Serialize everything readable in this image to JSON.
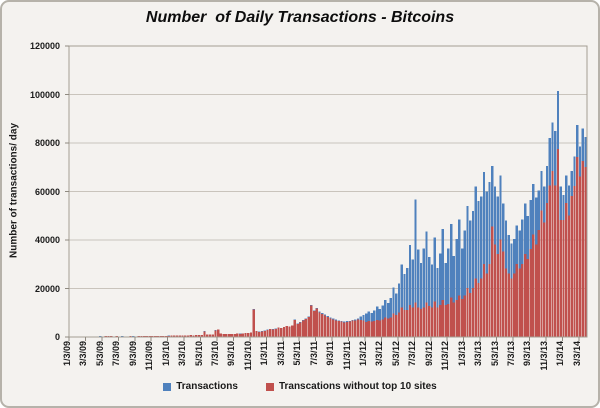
{
  "chart_data": {
    "type": "bar",
    "title": "Number  of Daily Transactions - Bitcoins",
    "ylabel": "Number of transactions/ day",
    "xlabel": "",
    "ylim": [
      0,
      120000
    ],
    "grid": true,
    "legend_position": "bottom",
    "y_tick_values": [
      0,
      20000,
      40000,
      60000,
      80000,
      100000,
      120000
    ],
    "y_tick_labels": [
      "0",
      "20000",
      "40000",
      "60000",
      "80000",
      "100000",
      "120000"
    ],
    "x_tick_labels": [
      "1/3/09",
      "3/3/09",
      "5/3/09",
      "7/3/09",
      "9/3/09",
      "11/3/09",
      "1/3/10",
      "3/3/10",
      "5/3/10",
      "7/3/10",
      "9/3/10",
      "11/3/10",
      "1/3/11",
      "3/3/11",
      "5/3/11",
      "7/3/11",
      "9/3/11",
      "11/3/11",
      "1/3/12",
      "3/3/12",
      "5/3/12",
      "7/3/12",
      "9/3/12",
      "11/3/12",
      "1/3/13",
      "3/3/13",
      "5/3/13",
      "7/3/13",
      "9/3/13",
      "11/3/13",
      "1/3/14",
      "3/3/14"
    ],
    "x_axis_total_tick_spans": 31.5,
    "sample_interval": "approx every 10 days, Jan 2009 - Mar 2014",
    "series": [
      {
        "name": "Transactions",
        "color": "#4F81BD",
        "values": [
          150,
          200,
          180,
          200,
          250,
          220,
          250,
          300,
          280,
          300,
          280,
          320,
          300,
          350,
          330,
          350,
          300,
          380,
          300,
          320,
          310,
          310,
          350,
          320,
          300,
          330,
          350,
          350,
          400,
          380,
          400,
          430,
          450,
          420,
          460,
          500,
          520,
          560,
          600,
          600,
          650,
          620,
          650,
          700,
          750,
          720,
          800,
          760,
          900,
          2400,
          1000,
          1000,
          1100,
          2800,
          3100,
          1400,
          1200,
          1200,
          1300,
          1250,
          1300,
          1400,
          1350,
          1500,
          1600,
          1700,
          1900,
          11500,
          2500,
          2200,
          2400,
          2600,
          3000,
          3400,
          3200,
          3500,
          4000,
          3800,
          4200,
          4600,
          4400,
          4800,
          7200,
          5600,
          6200,
          7000,
          7600,
          8500,
          13200,
          11000,
          12000,
          10500,
          9800,
          9200,
          8600,
          8000,
          7600,
          7200,
          6900,
          6600,
          6300,
          6500,
          6700,
          7100,
          7300,
          7700,
          8500,
          9100,
          9600,
          10600,
          10000,
          11000,
          12600,
          11600,
          13000,
          15200,
          14000,
          16000,
          20500,
          18000,
          22000,
          30000,
          26000,
          28500,
          38000,
          32000,
          56800,
          36000,
          30500,
          36500,
          43500,
          33000,
          30000,
          41000,
          28500,
          34500,
          44500,
          30500,
          36500,
          46500,
          33500,
          40500,
          48500,
          36500,
          44000,
          54000,
          48000,
          52000,
          62000,
          56000,
          58000,
          68000,
          60000,
          64000,
          70500,
          62000,
          58000,
          66500,
          55000,
          48000,
          42000,
          38500,
          40500,
          46000,
          44000,
          48500,
          55000,
          50000,
          56500,
          63000,
          57500,
          60500,
          68500,
          62000,
          70500,
          82000,
          88500,
          85000,
          101500,
          62000,
          58500,
          66500,
          62500,
          68500,
          74500,
          87500,
          78500,
          86000,
          82500
        ]
      },
      {
        "name": "Transcations without top 10 sites",
        "color": "#C0504D",
        "values": [
          140,
          190,
          170,
          190,
          240,
          210,
          240,
          290,
          270,
          290,
          270,
          310,
          290,
          340,
          320,
          340,
          290,
          370,
          290,
          310,
          300,
          300,
          340,
          310,
          290,
          320,
          340,
          340,
          390,
          370,
          390,
          420,
          440,
          410,
          450,
          490,
          500,
          540,
          580,
          580,
          630,
          600,
          630,
          680,
          730,
          700,
          780,
          740,
          870,
          2350,
          970,
          970,
          1070,
          2750,
          3050,
          1360,
          1160,
          1160,
          1260,
          1210,
          1260,
          1360,
          1310,
          1450,
          1550,
          1650,
          1850,
          11400,
          2430,
          2140,
          2340,
          2530,
          2900,
          3300,
          3100,
          3400,
          3900,
          3700,
          4100,
          4480,
          4280,
          4680,
          7050,
          5450,
          6050,
          6820,
          7400,
          8300,
          12900,
          10700,
          11700,
          10200,
          9500,
          8900,
          8300,
          7700,
          7300,
          6900,
          6600,
          6300,
          6000,
          6200,
          6400,
          6800,
          6900,
          7200,
          7000,
          6800,
          6200,
          6600,
          6400,
          6600,
          7100,
          6900,
          7200,
          8100,
          7600,
          8100,
          9600,
          9100,
          10100,
          12100,
          11100,
          11200,
          13200,
          12200,
          14200,
          12200,
          11600,
          12200,
          14200,
          12700,
          12200,
          14700,
          12200,
          13200,
          15200,
          13200,
          13700,
          16200,
          14200,
          15200,
          17200,
          15700,
          17200,
          20200,
          18200,
          20200,
          24200,
          22200,
          24200,
          30200,
          26200,
          30200,
          45500,
          38200,
          34200,
          40200,
          35200,
          28200,
          26200,
          24200,
          26200,
          30200,
          28200,
          30200,
          34200,
          32200,
          36200,
          42200,
          38200,
          44200,
          52200,
          47200,
          55200,
          62500,
          68500,
          62500,
          77500,
          48200,
          48200,
          55200,
          50200,
          58200,
          62200,
          74200,
          66200,
          72500,
          70200
        ]
      }
    ],
    "legend": [
      {
        "name": "Transactions",
        "color": "#4F81BD"
      },
      {
        "name": "Transcations without top 10 sites",
        "color": "#C0504D"
      }
    ]
  },
  "colors": {
    "frame_background": "#f4f2ef",
    "frame_border": "#b6b2aa",
    "gridline": "#c9c4bc",
    "plot_border": "#a39d93",
    "tick": "#8f8a80",
    "text": "#1a1a1a"
  }
}
